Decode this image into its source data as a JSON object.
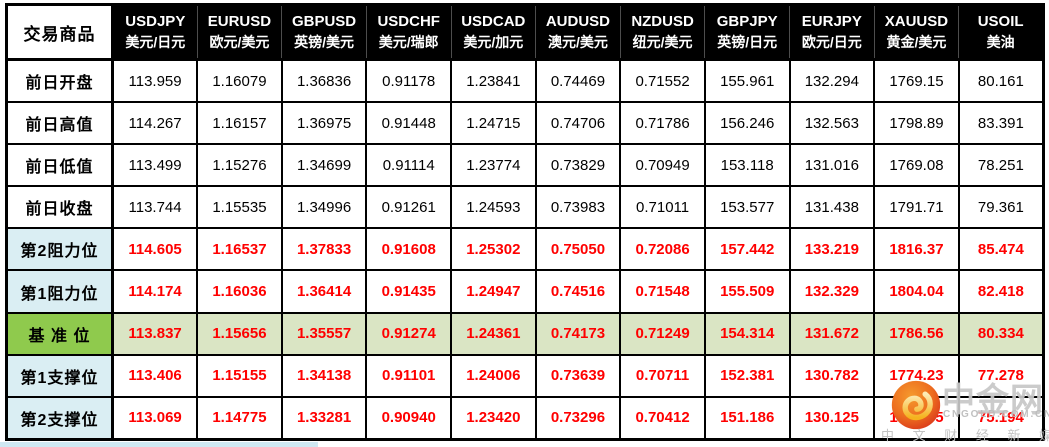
{
  "chart_data": {
    "type": "table",
    "corner_header": "交易商品",
    "columns": [
      {
        "symbol": "USDJPY",
        "name": "美元/日元"
      },
      {
        "symbol": "EURUSD",
        "name": "欧元/美元"
      },
      {
        "symbol": "GBPUSD",
        "name": "英镑/美元"
      },
      {
        "symbol": "USDCHF",
        "name": "美元/瑞郎"
      },
      {
        "symbol": "USDCAD",
        "name": "美元/加元"
      },
      {
        "symbol": "AUDUSD",
        "name": "澳元/美元"
      },
      {
        "symbol": "NZDUSD",
        "name": "纽元/美元"
      },
      {
        "symbol": "GBPJPY",
        "name": "英镑/日元"
      },
      {
        "symbol": "EURJPY",
        "name": "欧元/日元"
      },
      {
        "symbol": "XAUUSD",
        "name": "黄金/美元"
      },
      {
        "symbol": "USOIL",
        "name": "美油"
      }
    ],
    "rows": [
      {
        "label": "前日开盘",
        "type": "prev",
        "values": [
          "113.959",
          "1.16079",
          "1.36836",
          "0.91178",
          "1.23841",
          "0.74469",
          "0.71552",
          "155.961",
          "132.294",
          "1769.15",
          "80.161"
        ]
      },
      {
        "label": "前日高值",
        "type": "prev",
        "values": [
          "114.267",
          "1.16157",
          "1.36975",
          "0.91448",
          "1.24715",
          "0.74706",
          "0.71786",
          "156.246",
          "132.563",
          "1798.89",
          "83.391"
        ]
      },
      {
        "label": "前日低值",
        "type": "prev",
        "values": [
          "113.499",
          "1.15276",
          "1.34699",
          "0.91114",
          "1.23774",
          "0.73829",
          "0.70949",
          "153.118",
          "131.016",
          "1769.08",
          "78.251"
        ]
      },
      {
        "label": "前日收盘",
        "type": "prev",
        "values": [
          "113.744",
          "1.15535",
          "1.34996",
          "0.91261",
          "1.24593",
          "0.73983",
          "0.71011",
          "153.577",
          "131.438",
          "1791.71",
          "79.361"
        ]
      },
      {
        "label": "第2阻力位",
        "type": "pivot",
        "values": [
          "114.605",
          "1.16537",
          "1.37833",
          "0.91608",
          "1.25302",
          "0.75050",
          "0.72086",
          "157.442",
          "133.219",
          "1816.37",
          "85.474"
        ]
      },
      {
        "label": "第1阻力位",
        "type": "pivot",
        "values": [
          "114.174",
          "1.16036",
          "1.36414",
          "0.91435",
          "1.24947",
          "0.74516",
          "0.71548",
          "155.509",
          "132.329",
          "1804.04",
          "82.418"
        ]
      },
      {
        "label": "基 准 位",
        "type": "base",
        "values": [
          "113.837",
          "1.15656",
          "1.35557",
          "0.91274",
          "1.24361",
          "0.74173",
          "0.71249",
          "154.314",
          "131.672",
          "1786.56",
          "80.334"
        ]
      },
      {
        "label": "第1支撑位",
        "type": "pivot",
        "values": [
          "113.406",
          "1.15155",
          "1.34138",
          "0.91101",
          "1.24006",
          "0.73639",
          "0.70711",
          "152.381",
          "130.782",
          "1774.23",
          "77.278"
        ]
      },
      {
        "label": "第2支撑位",
        "type": "pivot",
        "values": [
          "113.069",
          "1.14775",
          "1.33281",
          "0.90940",
          "1.23420",
          "0.73296",
          "0.70412",
          "151.186",
          "130.125",
          "1756.75",
          "75.194"
        ]
      }
    ]
  },
  "watermark": {
    "brand": "中金网",
    "domain": "CNGOLD.COM.CN",
    "slogan": "中 文 财 经 新 媒 体"
  },
  "colors": {
    "header_bg": "#000000",
    "header_text": "#ffffff",
    "value_red": "#ff0000",
    "resistance_support_label_bg": "#daeef3",
    "base_label_bg": "#8fca4d",
    "base_row_bg": "#dae5c4",
    "border": "#000000",
    "logo_red": "#d62e1b",
    "logo_gold": "#f5b21e"
  }
}
